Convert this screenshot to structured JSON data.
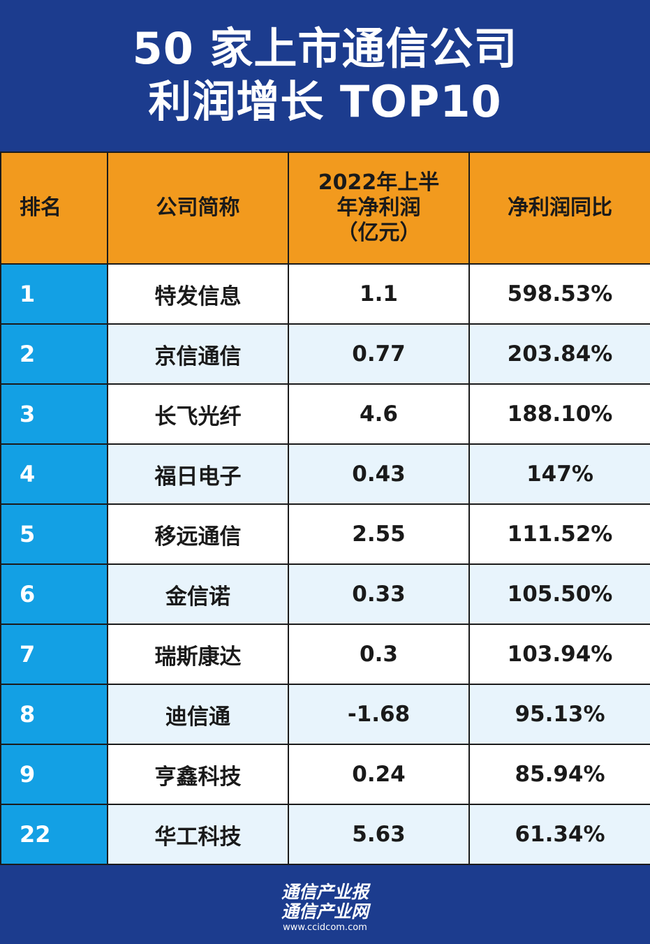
{
  "title": {
    "line1": "50 家上市通信公司",
    "line2": "利润增长 TOP10"
  },
  "table": {
    "headers": {
      "rank": "排名",
      "company": "公司简称",
      "profit_line1": "2022年上半",
      "profit_line2": "年净利润",
      "profit_line3": "（亿元）",
      "yoy": "净利润同比"
    },
    "rows": [
      {
        "rank": "1",
        "company": "特发信息",
        "profit": "1.1",
        "yoy": "598.53%"
      },
      {
        "rank": "2",
        "company": "京信通信",
        "profit": "0.77",
        "yoy": "203.84%"
      },
      {
        "rank": "3",
        "company": "长飞光纤",
        "profit": "4.6",
        "yoy": "188.10%"
      },
      {
        "rank": "4",
        "company": "福日电子",
        "profit": "0.43",
        "yoy": "147%"
      },
      {
        "rank": "5",
        "company": "移远通信",
        "profit": "2.55",
        "yoy": "111.52%"
      },
      {
        "rank": "6",
        "company": "金信诺",
        "profit": "0.33",
        "yoy": "105.50%"
      },
      {
        "rank": "7",
        "company": "瑞斯康达",
        "profit": "0.3",
        "yoy": "103.94%"
      },
      {
        "rank": "8",
        "company": "迪信通",
        "profit": "-1.68",
        "yoy": "95.13%"
      },
      {
        "rank": "9",
        "company": "亨鑫科技",
        "profit": "0.24",
        "yoy": "85.94%"
      },
      {
        "rank": "22",
        "company": "华工科技",
        "profit": "5.63",
        "yoy": "61.34%"
      }
    ]
  },
  "footer": {
    "line1": "通信产业报",
    "line2": "通信产业网",
    "url": "www.ccidcom.com"
  },
  "colors": {
    "background": "#1c3c8e",
    "header": "#f29a1e",
    "rank_column": "#13a0e4",
    "negative_value": "#2e9b3a"
  }
}
